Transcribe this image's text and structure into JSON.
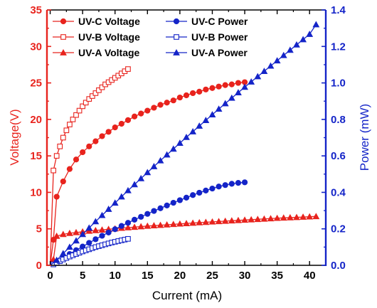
{
  "chart_data": {
    "type": "line",
    "xlabel": "Current (mA)",
    "ylabel_left": "Voltage(V)",
    "ylabel_right": "Power (mW)",
    "xlim": [
      -0.5,
      42.5
    ],
    "ylim_left": [
      0,
      35
    ],
    "ylim_right": [
      0,
      1.4
    ],
    "x_ticks": [
      "0",
      "5",
      "10",
      "15",
      "20",
      "25",
      "30",
      "35",
      "40"
    ],
    "y_left_ticks": [
      "0",
      "5",
      "10",
      "15",
      "20",
      "25",
      "30",
      "35"
    ],
    "y_right_ticks": [
      "0.0",
      "0.2",
      "0.4",
      "0.6",
      "0.8",
      "1.0",
      "1.2",
      "1.4"
    ],
    "colors": {
      "left_axis": "#e8231d",
      "right_axis": "#1424c8",
      "red": "#e8231d",
      "blue": "#1424c8"
    },
    "legend_position": "top-left",
    "series": [
      {
        "name": "UV-C Voltage",
        "axis": "left",
        "color": "#e8231d",
        "marker": "circle-filled",
        "x": [
          0,
          0.5,
          1,
          2,
          3,
          4,
          5,
          6,
          7,
          8,
          9,
          10,
          11,
          12,
          13,
          14,
          15,
          16,
          17,
          18,
          19,
          20,
          21,
          22,
          23,
          24,
          25,
          26,
          27,
          28,
          29,
          30
        ],
        "y": [
          0,
          3.5,
          9.4,
          11.5,
          13.2,
          14.5,
          15.5,
          16.3,
          17.0,
          17.7,
          18.3,
          18.9,
          19.4,
          19.9,
          20.4,
          20.8,
          21.2,
          21.6,
          22.0,
          22.3,
          22.6,
          23.0,
          23.3,
          23.6,
          23.8,
          24.1,
          24.3,
          24.5,
          24.7,
          24.8,
          25.0,
          25.1
        ]
      },
      {
        "name": "UV-B Voltage",
        "axis": "left",
        "color": "#e8231d",
        "marker": "square-open",
        "x": [
          0,
          0.5,
          1,
          1.5,
          2,
          2.5,
          3,
          3.5,
          4,
          4.5,
          5,
          5.5,
          6,
          6.5,
          7,
          7.5,
          8,
          8.5,
          9,
          9.5,
          10,
          10.5,
          11,
          11.5,
          12
        ],
        "y": [
          0,
          13,
          15,
          16.3,
          17.5,
          18.5,
          19.3,
          20,
          20.6,
          21.2,
          21.8,
          22.3,
          22.8,
          23.2,
          23.6,
          24,
          24.4,
          24.8,
          25.1,
          25.4,
          25.7,
          26,
          26.3,
          26.6,
          26.9
        ]
      },
      {
        "name": "UV-A Voltage",
        "axis": "left",
        "color": "#e8231d",
        "marker": "triangle-filled",
        "x": [
          0,
          0.5,
          1,
          2,
          3,
          4,
          5,
          6,
          7,
          8,
          9,
          10,
          11,
          12,
          13,
          14,
          15,
          16,
          17,
          18,
          19,
          20,
          21,
          22,
          23,
          24,
          25,
          26,
          27,
          28,
          29,
          30,
          31,
          32,
          33,
          34,
          35,
          36,
          37,
          38,
          39,
          40,
          41
        ],
        "y": [
          0,
          0.8,
          4.0,
          4.25,
          4.4,
          4.5,
          4.6,
          4.7,
          4.78,
          4.86,
          4.94,
          5.02,
          5.1,
          5.17,
          5.24,
          5.31,
          5.38,
          5.44,
          5.5,
          5.56,
          5.62,
          5.68,
          5.74,
          5.8,
          5.86,
          5.91,
          5.96,
          6.01,
          6.06,
          6.11,
          6.16,
          6.21,
          6.26,
          6.31,
          6.36,
          6.41,
          6.46,
          6.5,
          6.54,
          6.58,
          6.62,
          6.66,
          6.7
        ]
      },
      {
        "name": "UV-C Power",
        "axis": "right",
        "color": "#1424c8",
        "marker": "circle-filled",
        "x": [
          0,
          1,
          2,
          3,
          4,
          5,
          6,
          7,
          8,
          9,
          10,
          11,
          12,
          13,
          14,
          15,
          16,
          17,
          18,
          19,
          20,
          21,
          22,
          23,
          24,
          25,
          26,
          27,
          28,
          29,
          30
        ],
        "y": [
          0,
          0.018,
          0.04,
          0.062,
          0.083,
          0.103,
          0.123,
          0.143,
          0.162,
          0.18,
          0.198,
          0.216,
          0.233,
          0.25,
          0.266,
          0.282,
          0.298,
          0.313,
          0.328,
          0.343,
          0.357,
          0.371,
          0.385,
          0.398,
          0.41,
          0.421,
          0.432,
          0.44,
          0.447,
          0.452,
          0.455
        ]
      },
      {
        "name": "UV-B Power",
        "axis": "right",
        "color": "#1424c8",
        "marker": "square-open",
        "x": [
          0,
          0.5,
          1,
          1.5,
          2,
          2.5,
          3,
          3.5,
          4,
          4.5,
          5,
          5.5,
          6,
          6.5,
          7,
          7.5,
          8,
          8.5,
          9,
          9.5,
          10,
          10.5,
          11,
          11.5,
          12
        ],
        "y": [
          0,
          0.005,
          0.014,
          0.023,
          0.032,
          0.04,
          0.048,
          0.055,
          0.062,
          0.069,
          0.076,
          0.082,
          0.088,
          0.094,
          0.1,
          0.105,
          0.11,
          0.115,
          0.12,
          0.125,
          0.129,
          0.133,
          0.137,
          0.141,
          0.145
        ]
      },
      {
        "name": "UV-A Power",
        "axis": "right",
        "color": "#1424c8",
        "marker": "triangle-filled",
        "x": [
          0,
          1,
          2,
          3,
          4,
          5,
          6,
          7,
          8,
          9,
          10,
          11,
          12,
          13,
          14,
          15,
          16,
          17,
          18,
          19,
          20,
          21,
          22,
          23,
          24,
          25,
          26,
          27,
          28,
          29,
          30,
          31,
          32,
          33,
          34,
          35,
          36,
          37,
          38,
          39,
          40,
          41
        ],
        "y": [
          0,
          0.028,
          0.065,
          0.1,
          0.135,
          0.17,
          0.205,
          0.24,
          0.274,
          0.308,
          0.342,
          0.376,
          0.41,
          0.443,
          0.476,
          0.509,
          0.542,
          0.574,
          0.606,
          0.638,
          0.67,
          0.702,
          0.733,
          0.764,
          0.795,
          0.826,
          0.857,
          0.887,
          0.917,
          0.947,
          0.977,
          1.006,
          1.035,
          1.064,
          1.093,
          1.122,
          1.151,
          1.18,
          1.209,
          1.238,
          1.267,
          1.32
        ]
      }
    ]
  }
}
